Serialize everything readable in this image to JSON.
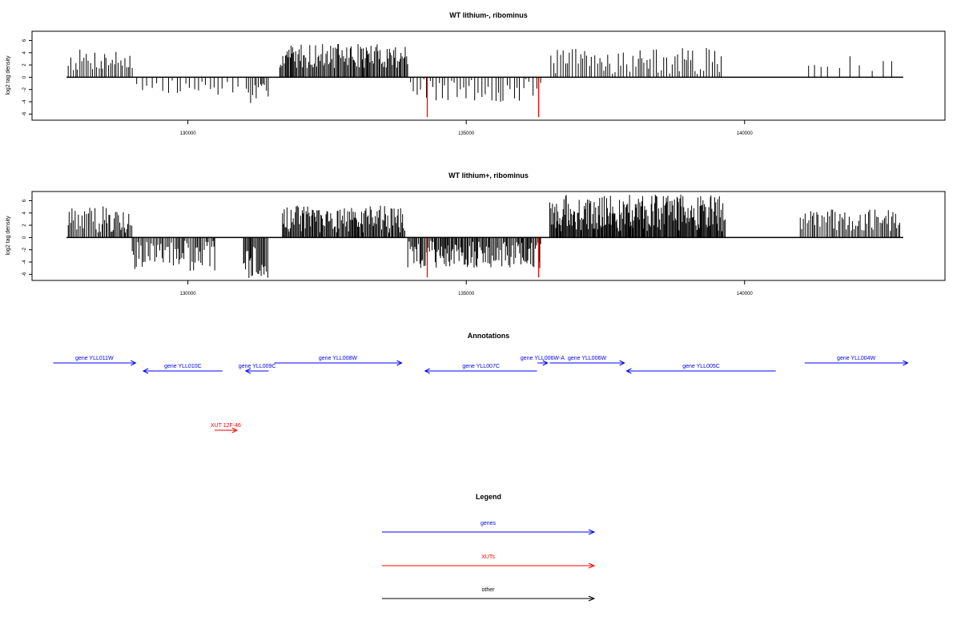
{
  "chart_data": [
    {
      "type": "bar",
      "title": "WT lithium-, ribominus",
      "xlabel": "",
      "ylabel": "log2 tag density",
      "ylim": [
        -7,
        7.5
      ],
      "xlim": [
        127200,
        143600
      ],
      "x_ticks": [
        130000,
        135000,
        140000
      ],
      "x_tick_labels": [
        "130000",
        "135000",
        "140000"
      ],
      "y_ticks": [
        -6,
        -4,
        -2,
        0,
        2,
        4,
        6
      ],
      "y_tick_labels": [
        "-6",
        "-4",
        "-2",
        "0",
        "2",
        "4",
        "6"
      ],
      "baseline_range": [
        127820,
        142850
      ],
      "colors": {
        "signal": "#000000",
        "highlight": "#ff0000"
      },
      "note": "dense bar traces approximated by estimated region profiles",
      "regions": [
        {
          "start": 127850,
          "end": 129000,
          "min": 1.0,
          "max": 4.6,
          "step": 35
        },
        {
          "start": 129080,
          "end": 130900,
          "min": -3.1,
          "max": -0.4,
          "step": 80
        },
        {
          "start": 131050,
          "end": 131450,
          "min": -4.4,
          "max": -1.0,
          "step": 30
        },
        {
          "start": 131650,
          "end": 133950,
          "min": 1.5,
          "max": 5.5,
          "step": 20
        },
        {
          "start": 134000,
          "end": 136350,
          "min": -4.2,
          "max": -0.3,
          "step": 60
        },
        {
          "start": 136520,
          "end": 139600,
          "min": 0.5,
          "max": 4.8,
          "step": 45
        },
        {
          "start": 141150,
          "end": 142750,
          "min": 1.0,
          "max": 3.5,
          "step": 170
        }
      ],
      "highlight_bars": [
        {
          "x": 134300,
          "value": -6.5
        },
        {
          "x": 136300,
          "value": -6.5
        }
      ]
    },
    {
      "type": "bar",
      "title": "WT lithium+, ribominus",
      "xlabel": "",
      "ylabel": "log2 tag density",
      "ylim": [
        -7,
        7.5
      ],
      "xlim": [
        127200,
        143600
      ],
      "x_ticks": [
        130000,
        135000,
        140000
      ],
      "x_tick_labels": [
        "130000",
        "135000",
        "140000"
      ],
      "y_ticks": [
        -6,
        -4,
        -2,
        0,
        2,
        4,
        6
      ],
      "y_tick_labels": [
        "-6",
        "-4",
        "-2",
        "0",
        "2",
        "4",
        "6"
      ],
      "baseline_range": [
        127820,
        142850
      ],
      "colors": {
        "signal": "#000000",
        "highlight": "#ff0000"
      },
      "note": "dense bar traces approximated by estimated region profiles",
      "regions": [
        {
          "start": 127850,
          "end": 129000,
          "min": 0.8,
          "max": 5.2,
          "step": 25
        },
        {
          "start": 129000,
          "end": 130500,
          "min": -5.5,
          "max": -0.5,
          "step": 25
        },
        {
          "start": 131000,
          "end": 131450,
          "min": -6.6,
          "max": -1.5,
          "step": 20
        },
        {
          "start": 131700,
          "end": 133900,
          "min": 0.8,
          "max": 5.2,
          "step": 18
        },
        {
          "start": 133950,
          "end": 136350,
          "min": -5.0,
          "max": -0.5,
          "step": 20
        },
        {
          "start": 136500,
          "end": 139650,
          "min": 1.0,
          "max": 7.0,
          "step": 15
        },
        {
          "start": 141000,
          "end": 142800,
          "min": 1.0,
          "max": 4.6,
          "step": 28
        }
      ],
      "highlight_bars": [
        {
          "x": 134300,
          "value": -6.5
        },
        {
          "x": 136300,
          "value": -6.5
        }
      ]
    }
  ],
  "annotations": {
    "title": "Annotations",
    "features": [
      {
        "label": "gene YLL011W",
        "start": 127580,
        "end": 129060,
        "strand": "+",
        "color": "#0000ff",
        "row": 0
      },
      {
        "label": "gene YLL010C",
        "start": 129200,
        "end": 130620,
        "strand": "-",
        "color": "#0000ff",
        "row": 1
      },
      {
        "label": "gene YLL009C",
        "start": 131040,
        "end": 131450,
        "strand": "-",
        "color": "#0000ff",
        "row": 1
      },
      {
        "label": "gene YLL008W",
        "start": 131550,
        "end": 133840,
        "strand": "+",
        "color": "#0000ff",
        "row": 0
      },
      {
        "label": "gene YLL007C",
        "start": 134260,
        "end": 136270,
        "strand": "-",
        "color": "#0000ff",
        "row": 1
      },
      {
        "label": "gene YLL006W-A",
        "start": 136280,
        "end": 136460,
        "strand": "+",
        "color": "#0000ff",
        "row": 0
      },
      {
        "label": "gene YLL006W",
        "start": 136500,
        "end": 137840,
        "strand": "+",
        "color": "#0000ff",
        "row": 0
      },
      {
        "label": "gene YLL005C",
        "start": 137880,
        "end": 140560,
        "strand": "-",
        "color": "#0000ff",
        "row": 1
      },
      {
        "label": "gene YLL004W",
        "start": 141080,
        "end": 142930,
        "strand": "+",
        "color": "#0000ff",
        "row": 0
      },
      {
        "label": "XUT 12F-46",
        "start": 130480,
        "end": 130880,
        "strand": "+",
        "color": "#ff0000",
        "row": 2
      }
    ]
  },
  "legend": {
    "title": "Legend",
    "items": [
      {
        "label": "genes",
        "color": "#0000ff"
      },
      {
        "label": "XUTs",
        "color": "#ff0000"
      },
      {
        "label": "other",
        "color": "#000000"
      }
    ]
  }
}
